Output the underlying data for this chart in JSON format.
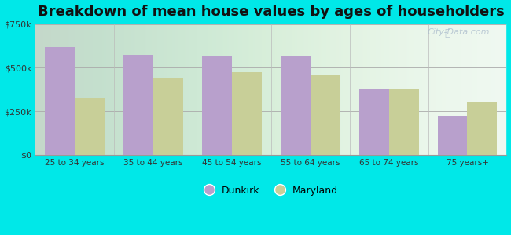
{
  "title": "Breakdown of mean house values by ages of householders",
  "categories": [
    "25 to 34 years",
    "35 to 44 years",
    "45 to 54 years",
    "55 to 64 years",
    "65 to 74 years",
    "75 years+"
  ],
  "dunkirk_values": [
    620000,
    575000,
    565000,
    570000,
    380000,
    225000
  ],
  "maryland_values": [
    325000,
    440000,
    475000,
    455000,
    375000,
    305000
  ],
  "dunkirk_color": "#b8a0cc",
  "maryland_color": "#c8cf98",
  "background_outer": "#00e8e8",
  "ylim": [
    0,
    750000
  ],
  "yticks": [
    0,
    250000,
    500000,
    750000
  ],
  "ytick_labels": [
    "$0",
    "$250k",
    "$500k",
    "$750k"
  ],
  "title_fontsize": 13,
  "legend_dunkirk": "Dunkirk",
  "legend_maryland": "Maryland",
  "bar_width": 0.38,
  "watermark": "City-Data.com"
}
